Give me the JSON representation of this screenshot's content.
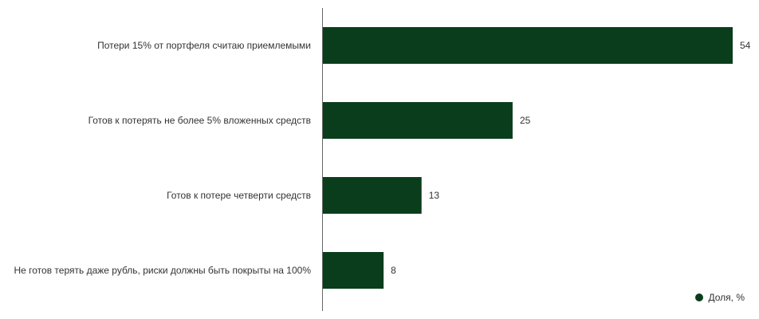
{
  "chart_data": {
    "type": "bar",
    "orientation": "horizontal",
    "categories": [
      "Потери 15% от портфеля считаю приемлемыми",
      "Готов к потерять не более 5% вложенных средств",
      "Готов к потере четверти средств",
      "Не готов терять даже рубль, риски должны быть покрыты на 100%"
    ],
    "series": [
      {
        "name": "Доля, %",
        "values": [
          54,
          25,
          13,
          8
        ]
      }
    ],
    "xlim": [
      0,
      54
    ],
    "grid": false,
    "legend": "bottom-right",
    "colors": {
      "bar": "#0a3d1c",
      "axis": "#666666"
    }
  }
}
